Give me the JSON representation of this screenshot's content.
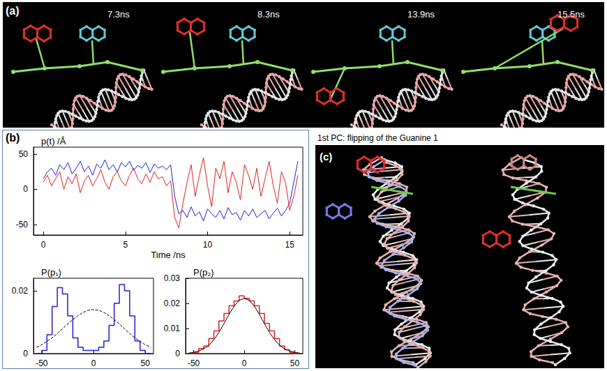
{
  "figure": {
    "panels": [
      {
        "label": "(a)",
        "snapshots": [
          "7.3ns",
          "8.3ns",
          "13.9ns",
          "15.5ns"
        ]
      },
      {
        "label": "(b)"
      },
      {
        "label": "(c)",
        "title": "1st PC: flipping of the Guanine 1"
      }
    ]
  },
  "chart_data": [
    {
      "type": "line",
      "y_label": "p(t) /Å",
      "x_label": "Time /ns",
      "grid": false,
      "x": [
        0,
        0.25,
        0.5,
        0.75,
        1,
        1.25,
        1.5,
        1.75,
        2,
        2.25,
        2.5,
        2.75,
        3,
        3.25,
        3.5,
        3.75,
        4,
        4.25,
        4.5,
        4.75,
        5,
        5.25,
        5.5,
        5.75,
        6,
        6.25,
        6.5,
        6.75,
        7,
        7.25,
        7.5,
        7.75,
        8,
        8.25,
        8.5,
        8.75,
        9,
        9.25,
        9.5,
        9.75,
        10,
        10.25,
        10.5,
        10.75,
        11,
        11.25,
        11.5,
        11.75,
        12,
        12.25,
        12.5,
        12.75,
        13,
        13.25,
        13.5,
        13.75,
        14,
        14.25,
        14.5,
        14.75,
        15,
        15.25,
        15.5
      ],
      "series": [
        {
          "color": "#1f1fd6",
          "values": [
            15,
            25,
            30,
            20,
            35,
            28,
            38,
            22,
            30,
            40,
            25,
            33,
            20,
            36,
            30,
            42,
            28,
            35,
            25,
            38,
            32,
            40,
            27,
            34,
            30,
            38,
            24,
            36,
            30,
            33,
            28,
            35,
            -10,
            -35,
            -30,
            -40,
            -25,
            -38,
            -32,
            -45,
            -28,
            -35,
            -40,
            -30,
            -42,
            -26,
            -36,
            -33,
            -44,
            -30,
            -38,
            -28,
            -40,
            -35,
            -30,
            -42,
            -34,
            -27,
            -38,
            -30,
            -20,
            10,
            40
          ]
        },
        {
          "color": "#e02020",
          "values": [
            10,
            20,
            5,
            15,
            25,
            0,
            18,
            8,
            22,
            -5,
            12,
            20,
            5,
            15,
            28,
            10,
            0,
            18,
            25,
            12,
            5,
            20,
            30,
            15,
            8,
            22,
            10,
            25,
            15,
            18,
            5,
            12,
            -40,
            -55,
            -20,
            10,
            35,
            -10,
            20,
            45,
            5,
            -25,
            30,
            15,
            40,
            -5,
            25,
            10,
            -15,
            35,
            20,
            0,
            30,
            -10,
            15,
            40,
            5,
            -20,
            25,
            10,
            -30,
            -10,
            20
          ]
        }
      ],
      "xlim": [
        -0.6,
        15.8
      ],
      "xticks": [
        0,
        5,
        10,
        15
      ],
      "ylim": [
        -65,
        60
      ],
      "yticks": [
        -50,
        0,
        50
      ]
    },
    {
      "type": "histogram",
      "y_label": "P(p₁)",
      "grid": false,
      "bins": [
        -55,
        -50,
        -45,
        -40,
        -35,
        -30,
        -25,
        -20,
        -15,
        -10,
        -5,
        0,
        5,
        10,
        15,
        20,
        25,
        30,
        35,
        40,
        45,
        50,
        55
      ],
      "series": [
        {
          "type": "histogram",
          "color": "#1f1fd6",
          "values": [
            0,
            0.001,
            0.006,
            0.015,
            0.021,
            0.019,
            0.012,
            0.005,
            0.002,
            0.001,
            0.001,
            0.001,
            0.002,
            0.004,
            0.009,
            0.016,
            0.022,
            0.02,
            0.012,
            0.004,
            0.001,
            0
          ]
        },
        {
          "type": "line",
          "color": "#000000",
          "line_style": "dashed",
          "x": [
            -55,
            -50,
            -45,
            -40,
            -35,
            -30,
            -25,
            -20,
            -15,
            -10,
            -5,
            0,
            5,
            10,
            15,
            20,
            25,
            30,
            35,
            40,
            45,
            50,
            55
          ],
          "values": [
            0.002,
            0.0028,
            0.0039,
            0.005,
            0.0064,
            0.0079,
            0.0094,
            0.0108,
            0.0121,
            0.0131,
            0.0138,
            0.014,
            0.0138,
            0.0131,
            0.0121,
            0.0108,
            0.0094,
            0.0079,
            0.0064,
            0.005,
            0.0039,
            0.0028,
            0.002
          ]
        }
      ],
      "xlim": [
        -58,
        58
      ],
      "xticks": [
        -50,
        0,
        50
      ],
      "ylim": [
        0,
        0.024
      ],
      "yticks": [
        0,
        0.02
      ]
    },
    {
      "type": "histogram",
      "y_label": "P(p₂)",
      "grid": false,
      "bins": [
        -55,
        -50,
        -45,
        -40,
        -35,
        -30,
        -25,
        -20,
        -15,
        -10,
        -5,
        0,
        5,
        10,
        15,
        20,
        25,
        30,
        35,
        40,
        45,
        50,
        55
      ],
      "series": [
        {
          "type": "histogram",
          "color": "#e02020",
          "values": [
            0,
            0.0005,
            0.002,
            0.003,
            0.006,
            0.009,
            0.013,
            0.016,
            0.019,
            0.021,
            0.023,
            0.022,
            0.021,
            0.019,
            0.016,
            0.012,
            0.009,
            0.006,
            0.003,
            0.0015,
            0.0005,
            0
          ]
        },
        {
          "type": "line",
          "color": "#000000",
          "line_style": "solid",
          "x": [
            -55,
            -50,
            -45,
            -40,
            -35,
            -30,
            -25,
            -20,
            -15,
            -10,
            -5,
            0,
            5,
            10,
            15,
            20,
            25,
            30,
            35,
            40,
            45,
            50,
            55
          ],
          "values": [
            0.0002,
            0.0005,
            0.001,
            0.0019,
            0.0033,
            0.0055,
            0.0084,
            0.0119,
            0.0156,
            0.0189,
            0.0212,
            0.022,
            0.0212,
            0.0189,
            0.0156,
            0.0119,
            0.0084,
            0.0055,
            0.0033,
            0.0019,
            0.001,
            0.0005,
            0.0002
          ]
        }
      ],
      "xlim": [
        -58,
        58
      ],
      "xticks": [
        -50,
        0,
        50
      ],
      "ylim": [
        0,
        0.03
      ],
      "yticks": [
        0,
        0.01,
        0.02,
        0.03
      ]
    }
  ]
}
